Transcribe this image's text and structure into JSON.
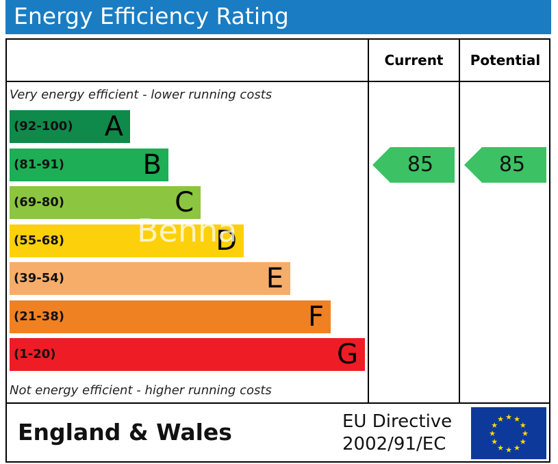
{
  "header": {
    "title": "Energy Efficiency Rating"
  },
  "columns": {
    "current": "Current",
    "potential": "Potential"
  },
  "captions": {
    "top": "Very energy efficient - lower running costs",
    "bottom": "Not energy efficient - higher running costs"
  },
  "watermark": "Benha",
  "chart_data": {
    "type": "bar",
    "title": "Energy Efficiency Rating",
    "bands": [
      {
        "range": "(92-100)",
        "letter": "A",
        "color": "#0f8a4a"
      },
      {
        "range": "(81-91)",
        "letter": "B",
        "color": "#1eae55"
      },
      {
        "range": "(69-80)",
        "letter": "C",
        "color": "#8cc53f"
      },
      {
        "range": "(55-68)",
        "letter": "D",
        "color": "#fdd00c"
      },
      {
        "range": "(39-54)",
        "letter": "E",
        "color": "#f7ad6a"
      },
      {
        "range": "(21-38)",
        "letter": "F",
        "color": "#f08123"
      },
      {
        "range": "(1-20)",
        "letter": "G",
        "color": "#ee1c25"
      }
    ],
    "current": {
      "value": "85",
      "band": "B",
      "color": "#3cc164"
    },
    "potential": {
      "value": "85",
      "band": "B",
      "color": "#3cc164"
    }
  },
  "footer": {
    "region": "England & Wales",
    "directive_line1": "EU Directive",
    "directive_line2": "2002/91/EC"
  }
}
